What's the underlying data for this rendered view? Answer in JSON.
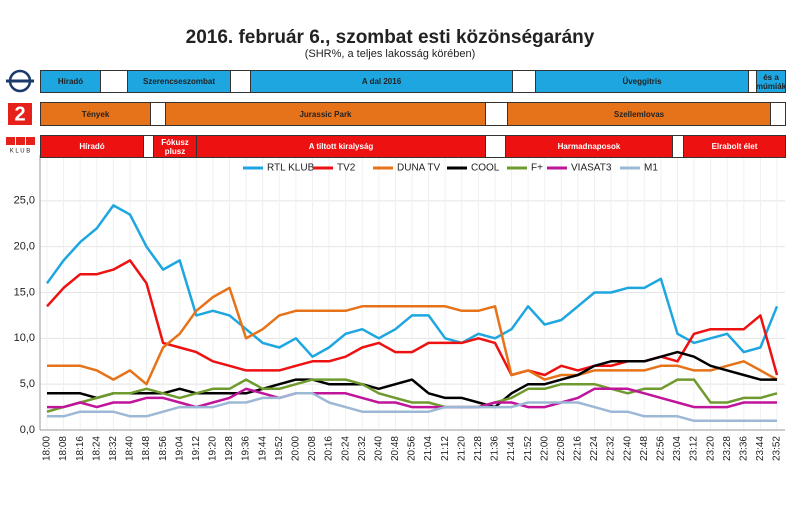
{
  "title": "2016. február 6., szombat esti közönségarány",
  "subtitle": "(SHR%, a teljes lakosság körében)",
  "program_rows": [
    {
      "programs": [
        "Híradó",
        null,
        "Szerencseszombat",
        null,
        "A dal 2016",
        null,
        "Üveggitris",
        null,
        "Adele és a múmiák rejtélye"
      ]
    },
    {
      "programs": [
        "Tények",
        null,
        "Jurassic Park",
        null,
        "Szellemlovas",
        null
      ]
    },
    {
      "programs": [
        "Híradó",
        null,
        "Fókusz plusz",
        "A tiltott kiralyság",
        null,
        "Harmadnaposok",
        null,
        "Elrabolt élet"
      ]
    }
  ],
  "chart_data": {
    "type": "line",
    "categories": [
      "18:00",
      "18:08",
      "18:16",
      "18:24",
      "18:32",
      "18:40",
      "18:48",
      "18:56",
      "19:04",
      "19:12",
      "19:20",
      "19:28",
      "19:36",
      "19:44",
      "19:52",
      "20:00",
      "20:08",
      "20:16",
      "20:24",
      "20:32",
      "20:40",
      "20:48",
      "20:56",
      "21:04",
      "21:12",
      "21:20",
      "21:28",
      "21:36",
      "21:44",
      "21:52",
      "22:00",
      "22:08",
      "22:16",
      "22:24",
      "22:32",
      "22:40",
      "22:48",
      "22:56",
      "23:04",
      "23:12",
      "23:20",
      "23:28",
      "23:36",
      "23:44",
      "23:52"
    ],
    "ylim": [
      0,
      30
    ],
    "yticks": [
      {
        "value": 0,
        "label": "0,0"
      },
      {
        "value": 5,
        "label": "5,0"
      },
      {
        "value": 10,
        "label": "10,0"
      },
      {
        "value": 15,
        "label": "15,0"
      },
      {
        "value": 20,
        "label": "20,0"
      },
      {
        "value": 25,
        "label": "25,0"
      }
    ],
    "grid": true,
    "series": [
      {
        "name": "RTL KLUB",
        "color": "#1ea6e0",
        "values": [
          16,
          18.5,
          20.5,
          22,
          24.5,
          23.5,
          20,
          17.5,
          18.5,
          12.5,
          13,
          12.5,
          11,
          9.5,
          9,
          10,
          8,
          9,
          10.5,
          11,
          10,
          11,
          12.5,
          12.5,
          10,
          9.5,
          10.5,
          10,
          11,
          13.5,
          11.5,
          12,
          13.5,
          15,
          15,
          15.5,
          15.5,
          16.5,
          10.5,
          9.5,
          10,
          10.5,
          8.5,
          9,
          13.5
        ]
      },
      {
        "name": "TV2",
        "color": "#ee1111",
        "values": [
          13.5,
          15.5,
          17,
          17,
          17.5,
          18.5,
          16,
          9.5,
          9,
          8.5,
          7.5,
          7,
          6.5,
          6.5,
          6.5,
          7,
          7.5,
          7.5,
          8,
          9,
          9.5,
          8.5,
          8.5,
          9.5,
          9.5,
          9.5,
          10,
          9.5,
          6,
          6.5,
          6,
          7,
          6.5,
          7,
          7,
          7.5,
          7.5,
          8,
          7.5,
          10.5,
          11,
          11,
          11,
          12.5,
          6
        ]
      },
      {
        "name": "DUNA TV",
        "color": "#e6731a",
        "values": [
          7,
          7,
          7,
          6.5,
          5.5,
          6.5,
          5,
          9,
          10.5,
          13,
          14.5,
          15.5,
          10,
          11,
          12.5,
          13,
          13,
          13,
          13,
          13.5,
          13.5,
          13.5,
          13.5,
          13.5,
          13.5,
          13,
          13,
          13.5,
          6,
          6.5,
          5.5,
          6,
          6,
          6.5,
          6.5,
          6.5,
          6.5,
          7,
          7,
          6.5,
          6.5,
          7,
          7.5,
          6.5,
          5.5
        ]
      },
      {
        "name": "COOL",
        "color": "#000000",
        "values": [
          4,
          4,
          4,
          3.5,
          4,
          4,
          4,
          4,
          4.5,
          4,
          4,
          4,
          4,
          4.5,
          5,
          5.5,
          5.5,
          5,
          5,
          5,
          4.5,
          5,
          5.5,
          4,
          3.5,
          3.5,
          3,
          2.5,
          4,
          5,
          5,
          5.5,
          6,
          7,
          7.5,
          7.5,
          7.5,
          8,
          8.5,
          8,
          7,
          6.5,
          6,
          5.5,
          5.5
        ]
      },
      {
        "name": "F+",
        "color": "#6f9a2e",
        "values": [
          2,
          2.5,
          3,
          3.5,
          4,
          4,
          4.5,
          4,
          3.5,
          4,
          4.5,
          4.5,
          5.5,
          4.5,
          4.5,
          5,
          5.5,
          5.5,
          5.5,
          5,
          4,
          3.5,
          3,
          3,
          2.5,
          2.5,
          2.5,
          3,
          3.5,
          4.5,
          4.5,
          5,
          5,
          5,
          4.5,
          4,
          4.5,
          4.5,
          5.5,
          5.5,
          3,
          3,
          3.5,
          3.5,
          4
        ]
      },
      {
        "name": "VIASAT3",
        "color": "#c0149a",
        "values": [
          2.5,
          2.5,
          3,
          2.5,
          3,
          3,
          3.5,
          3.5,
          3,
          2.5,
          3,
          3.5,
          4.5,
          4,
          3.5,
          4,
          4,
          4,
          4,
          3.5,
          3,
          3,
          2.5,
          2.5,
          2.5,
          2.5,
          2.5,
          3,
          3,
          2.5,
          2.5,
          3,
          3.5,
          4.5,
          4.5,
          4.5,
          4,
          3.5,
          3,
          2.5,
          2.5,
          2.5,
          3,
          3,
          3
        ]
      },
      {
        "name": "M1",
        "color": "#9db8d6",
        "values": [
          1.5,
          1.5,
          2,
          2,
          2,
          1.5,
          1.5,
          2,
          2.5,
          2.5,
          2.5,
          3,
          3,
          3.5,
          3.5,
          4,
          4,
          3,
          2.5,
          2,
          2,
          2,
          2,
          2,
          2.5,
          2.5,
          2.5,
          2.5,
          2.5,
          3,
          3,
          3,
          3,
          2.5,
          2,
          2,
          1.5,
          1.5,
          1.5,
          1,
          1,
          1,
          1,
          1,
          1
        ]
      }
    ]
  }
}
